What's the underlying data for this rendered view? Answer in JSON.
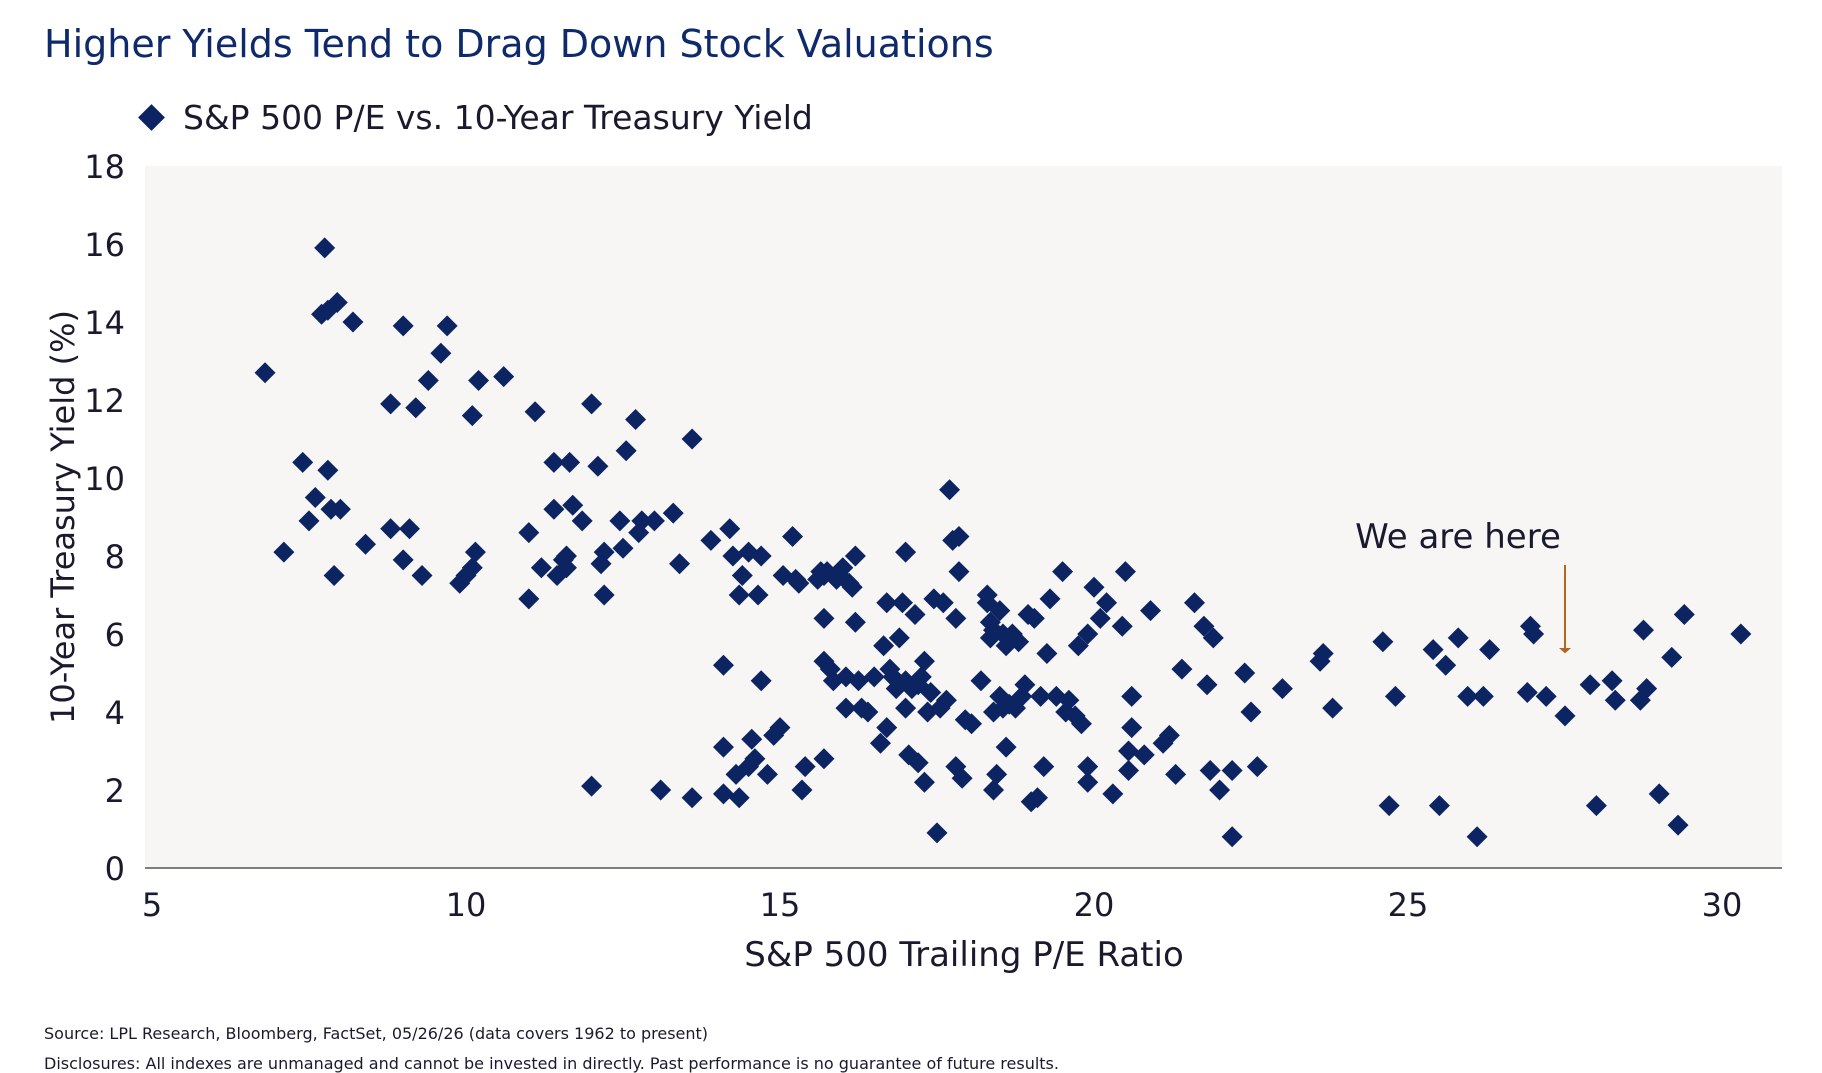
{
  "chart_data": {
    "type": "scatter",
    "title": "Higher Yields Tend to Drag Down Stock Valuations",
    "xlabel": "S&P 500 Trailing P/E Ratio",
    "ylabel": "10-Year Treasury Yield (%)",
    "xlim": [
      5,
      31
    ],
    "ylim": [
      0,
      18
    ],
    "xticks": [
      "5",
      "10",
      "15",
      "20",
      "25",
      "30"
    ],
    "yticks": [
      "0",
      "2",
      "4",
      "6",
      "8",
      "10",
      "12",
      "14",
      "16",
      "18"
    ],
    "grid": false,
    "legend_position": "top-left",
    "series": [
      {
        "name": "S&P 500 P/E vs. 10-Year Treasury Yield",
        "color": "#0c2461",
        "marker": "diamond",
        "points": [
          [
            6.8,
            12.7
          ],
          [
            7.1,
            8.1
          ],
          [
            7.4,
            10.4
          ],
          [
            7.5,
            8.9
          ],
          [
            7.6,
            9.5
          ],
          [
            7.7,
            14.2
          ],
          [
            7.75,
            15.9
          ],
          [
            7.8,
            14.3
          ],
          [
            7.8,
            10.2
          ],
          [
            7.85,
            9.2
          ],
          [
            7.9,
            7.5
          ],
          [
            7.95,
            14.5
          ],
          [
            8.0,
            9.2
          ],
          [
            8.2,
            14.0
          ],
          [
            8.4,
            8.3
          ],
          [
            8.8,
            8.7
          ],
          [
            8.8,
            11.9
          ],
          [
            9.0,
            7.9
          ],
          [
            9.0,
            13.9
          ],
          [
            9.1,
            8.7
          ],
          [
            9.2,
            11.8
          ],
          [
            9.3,
            7.5
          ],
          [
            9.4,
            12.5
          ],
          [
            9.6,
            13.2
          ],
          [
            9.7,
            13.9
          ],
          [
            9.9,
            7.3
          ],
          [
            10.0,
            7.5
          ],
          [
            10.1,
            7.7
          ],
          [
            10.15,
            8.1
          ],
          [
            10.1,
            11.6
          ],
          [
            10.2,
            12.5
          ],
          [
            10.6,
            12.6
          ],
          [
            11.0,
            8.6
          ],
          [
            11.0,
            6.9
          ],
          [
            11.1,
            11.7
          ],
          [
            11.2,
            7.7
          ],
          [
            11.4,
            10.4
          ],
          [
            11.4,
            9.2
          ],
          [
            11.45,
            7.5
          ],
          [
            11.55,
            7.9
          ],
          [
            11.6,
            8.0
          ],
          [
            11.6,
            7.7
          ],
          [
            11.65,
            10.4
          ],
          [
            11.7,
            9.3
          ],
          [
            11.85,
            8.9
          ],
          [
            12.0,
            11.9
          ],
          [
            12.0,
            2.1
          ],
          [
            12.1,
            10.3
          ],
          [
            12.15,
            7.8
          ],
          [
            12.2,
            8.1
          ],
          [
            12.2,
            7.0
          ],
          [
            12.45,
            8.9
          ],
          [
            12.5,
            8.2
          ],
          [
            12.55,
            10.7
          ],
          [
            12.7,
            11.5
          ],
          [
            12.75,
            8.6
          ],
          [
            12.8,
            8.9
          ],
          [
            13.0,
            8.9
          ],
          [
            13.1,
            2.0
          ],
          [
            13.3,
            9.1
          ],
          [
            13.4,
            7.8
          ],
          [
            13.6,
            11.0
          ],
          [
            13.6,
            1.8
          ],
          [
            13.9,
            8.4
          ],
          [
            14.1,
            5.2
          ],
          [
            14.1,
            3.1
          ],
          [
            14.1,
            1.9
          ],
          [
            14.2,
            8.7
          ],
          [
            14.25,
            8.0
          ],
          [
            14.3,
            2.4
          ],
          [
            14.35,
            7.0
          ],
          [
            14.35,
            1.8
          ],
          [
            14.4,
            7.5
          ],
          [
            14.5,
            8.1
          ],
          [
            14.5,
            2.6
          ],
          [
            14.55,
            3.3
          ],
          [
            14.6,
            2.8
          ],
          [
            14.65,
            7.0
          ],
          [
            14.7,
            8.0
          ],
          [
            14.7,
            4.8
          ],
          [
            14.8,
            2.4
          ],
          [
            14.9,
            3.4
          ],
          [
            15.0,
            3.6
          ],
          [
            15.05,
            7.5
          ],
          [
            15.2,
            8.5
          ],
          [
            15.25,
            7.4
          ],
          [
            15.3,
            7.3
          ],
          [
            15.35,
            2.0
          ],
          [
            15.4,
            2.6
          ],
          [
            15.6,
            7.4
          ],
          [
            15.65,
            7.6
          ],
          [
            15.7,
            7.5
          ],
          [
            15.7,
            5.3
          ],
          [
            15.7,
            6.4
          ],
          [
            15.7,
            2.8
          ],
          [
            15.75,
            7.6
          ],
          [
            15.8,
            5.1
          ],
          [
            15.85,
            4.8
          ],
          [
            15.9,
            7.4
          ],
          [
            15.95,
            7.5
          ],
          [
            16.0,
            7.7
          ],
          [
            16.05,
            4.9
          ],
          [
            16.05,
            4.1
          ],
          [
            16.1,
            7.3
          ],
          [
            16.15,
            7.2
          ],
          [
            16.2,
            8.0
          ],
          [
            16.2,
            6.3
          ],
          [
            16.25,
            4.8
          ],
          [
            16.3,
            4.1
          ],
          [
            16.4,
            4.0
          ],
          [
            16.5,
            4.9
          ],
          [
            16.6,
            3.2
          ],
          [
            16.65,
            5.7
          ],
          [
            16.7,
            6.8
          ],
          [
            16.75,
            5.1
          ],
          [
            16.7,
            3.6
          ],
          [
            16.8,
            4.9
          ],
          [
            16.85,
            4.6
          ],
          [
            16.9,
            5.9
          ],
          [
            16.95,
            6.8
          ],
          [
            17.0,
            4.8
          ],
          [
            17.0,
            8.1
          ],
          [
            17.0,
            4.1
          ],
          [
            17.05,
            2.9
          ],
          [
            17.1,
            4.6
          ],
          [
            17.15,
            6.5
          ],
          [
            17.2,
            4.7
          ],
          [
            17.2,
            2.7
          ],
          [
            17.25,
            4.9
          ],
          [
            17.3,
            5.3
          ],
          [
            17.3,
            2.2
          ],
          [
            17.35,
            4.0
          ],
          [
            17.4,
            4.5
          ],
          [
            17.45,
            6.9
          ],
          [
            17.5,
            0.9
          ],
          [
            17.55,
            4.1
          ],
          [
            17.6,
            6.8
          ],
          [
            17.65,
            4.3
          ],
          [
            17.7,
            9.7
          ],
          [
            17.75,
            8.4
          ],
          [
            17.8,
            2.6
          ],
          [
            17.8,
            6.4
          ],
          [
            17.85,
            7.6
          ],
          [
            17.85,
            8.5
          ],
          [
            17.9,
            2.3
          ],
          [
            17.95,
            3.8
          ],
          [
            18.05,
            3.7
          ],
          [
            18.2,
            4.8
          ],
          [
            18.3,
            6.8
          ],
          [
            18.3,
            7.0
          ],
          [
            18.35,
            6.3
          ],
          [
            18.35,
            5.9
          ],
          [
            18.4,
            6.1
          ],
          [
            18.4,
            4.0
          ],
          [
            18.4,
            2.0
          ],
          [
            18.45,
            2.4
          ],
          [
            18.5,
            6.6
          ],
          [
            18.5,
            4.4
          ],
          [
            18.55,
            6.0
          ],
          [
            18.55,
            4.1
          ],
          [
            18.6,
            5.7
          ],
          [
            18.6,
            3.1
          ],
          [
            18.65,
            4.2
          ],
          [
            18.7,
            6.0
          ],
          [
            18.75,
            4.1
          ],
          [
            18.8,
            5.8
          ],
          [
            18.85,
            4.4
          ],
          [
            18.9,
            4.7
          ],
          [
            18.95,
            6.5
          ],
          [
            19.0,
            1.7
          ],
          [
            19.05,
            6.4
          ],
          [
            19.1,
            1.8
          ],
          [
            19.15,
            4.4
          ],
          [
            19.2,
            2.6
          ],
          [
            19.25,
            5.5
          ],
          [
            19.3,
            6.9
          ],
          [
            19.4,
            4.4
          ],
          [
            19.5,
            7.6
          ],
          [
            19.55,
            4.0
          ],
          [
            19.6,
            4.3
          ],
          [
            19.7,
            3.9
          ],
          [
            19.75,
            5.7
          ],
          [
            19.8,
            3.7
          ],
          [
            19.9,
            6.0
          ],
          [
            19.9,
            2.2
          ],
          [
            19.9,
            2.6
          ],
          [
            20.0,
            7.2
          ],
          [
            20.1,
            6.4
          ],
          [
            20.2,
            6.8
          ],
          [
            20.3,
            1.9
          ],
          [
            20.45,
            6.2
          ],
          [
            20.5,
            7.6
          ],
          [
            20.55,
            3.0
          ],
          [
            20.55,
            2.5
          ],
          [
            20.6,
            4.4
          ],
          [
            20.6,
            3.6
          ],
          [
            20.8,
            2.9
          ],
          [
            20.9,
            6.6
          ],
          [
            21.1,
            3.2
          ],
          [
            21.2,
            3.4
          ],
          [
            21.3,
            2.4
          ],
          [
            21.4,
            5.1
          ],
          [
            21.6,
            6.8
          ],
          [
            21.75,
            6.2
          ],
          [
            21.8,
            4.7
          ],
          [
            21.85,
            2.5
          ],
          [
            21.9,
            5.9
          ],
          [
            22.0,
            2.0
          ],
          [
            22.2,
            0.8
          ],
          [
            22.2,
            2.5
          ],
          [
            22.4,
            5.0
          ],
          [
            22.5,
            4.0
          ],
          [
            22.6,
            2.6
          ],
          [
            23.0,
            4.6
          ],
          [
            23.6,
            5.3
          ],
          [
            23.65,
            5.5
          ],
          [
            23.8,
            4.1
          ],
          [
            24.6,
            5.8
          ],
          [
            24.7,
            1.6
          ],
          [
            24.8,
            4.4
          ],
          [
            25.4,
            5.6
          ],
          [
            25.5,
            1.6
          ],
          [
            25.6,
            5.2
          ],
          [
            25.8,
            5.9
          ],
          [
            25.95,
            4.4
          ],
          [
            26.1,
            0.8
          ],
          [
            26.2,
            4.4
          ],
          [
            26.3,
            5.6
          ],
          [
            26.9,
            4.5
          ],
          [
            26.95,
            6.2
          ],
          [
            27.0,
            6.0
          ],
          [
            27.2,
            4.4
          ],
          [
            27.5,
            3.9
          ],
          [
            27.9,
            4.7
          ],
          [
            28.0,
            1.6
          ],
          [
            28.25,
            4.8
          ],
          [
            28.3,
            4.3
          ],
          [
            28.7,
            4.3
          ],
          [
            28.75,
            6.1
          ],
          [
            28.8,
            4.6
          ],
          [
            29.0,
            1.9
          ],
          [
            29.2,
            5.4
          ],
          [
            29.3,
            1.1
          ],
          [
            29.4,
            6.5
          ],
          [
            30.3,
            6.0
          ]
        ]
      }
    ],
    "annotation": {
      "text": "We are here",
      "x": 27.5,
      "y": 5.4,
      "arrow_color": "#b5651d"
    },
    "plot_background": "#f8f6f5",
    "marker_color": "#0c2461"
  },
  "footer": {
    "source": "Source: LPL Research, Bloomberg, FactSet, 05/26/26 (data covers 1962 to present)",
    "disclosure": "Disclosures: All indexes are unmanaged and cannot be invested in directly. Past performance is no guarantee of future results."
  }
}
